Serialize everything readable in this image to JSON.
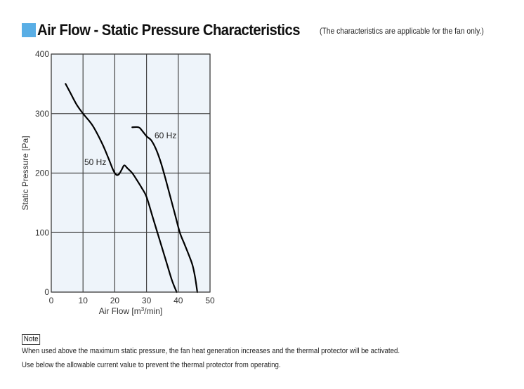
{
  "header": {
    "title": "Air Flow - Static Pressure Characteristics",
    "subtitle": "(The characteristics are applicable for the fan only.)",
    "accent_color": "#59aee5"
  },
  "note": {
    "label": "Note",
    "lines": [
      "When used above the maximum static pressure, the fan heat generation increases and the thermal protector will be activated.",
      "Use below the allowable current value to prevent the thermal protector from operating."
    ]
  },
  "chart_data": {
    "type": "line",
    "title": "Air Flow - Static Pressure Characteristics",
    "xlabel": "Air Flow [m3/min]",
    "xlabel_main": "Air Flow [m",
    "xlabel_sup": "3",
    "xlabel_tail": "/min]",
    "ylabel": "Static Pressure [Pa]",
    "xlim": [
      0,
      50
    ],
    "ylim": [
      0,
      400
    ],
    "xticks": [
      0,
      10,
      20,
      30,
      40,
      50
    ],
    "yticks": [
      0,
      100,
      200,
      300,
      400
    ],
    "grid": true,
    "plot_background": "#eef4fa",
    "series": [
      {
        "name": "50 Hz",
        "label": "50 Hz",
        "x": [
          4.5,
          6,
          8,
          10,
          13,
          16,
          18,
          19.5,
          20.5,
          21.3,
          22.2,
          23,
          24,
          25.5,
          27,
          28.5,
          30,
          32,
          34,
          36,
          38,
          39.5
        ],
        "y": [
          350,
          335,
          315,
          300,
          280,
          250,
          225,
          205,
          197,
          198,
          206,
          213,
          208,
          200,
          188,
          175,
          160,
          125,
          90,
          55,
          20,
          0
        ]
      },
      {
        "name": "60 Hz",
        "label": "60 Hz",
        "x": [
          25.5,
          27.5,
          28.5,
          30,
          31.5,
          33,
          34.5,
          36,
          37.5,
          39,
          40.5,
          42,
          43.5,
          44.5,
          45.3,
          46
        ],
        "y": [
          277,
          277,
          272,
          262,
          255,
          240,
          218,
          190,
          160,
          130,
          100,
          80,
          60,
          45,
          25,
          0
        ]
      }
    ]
  }
}
